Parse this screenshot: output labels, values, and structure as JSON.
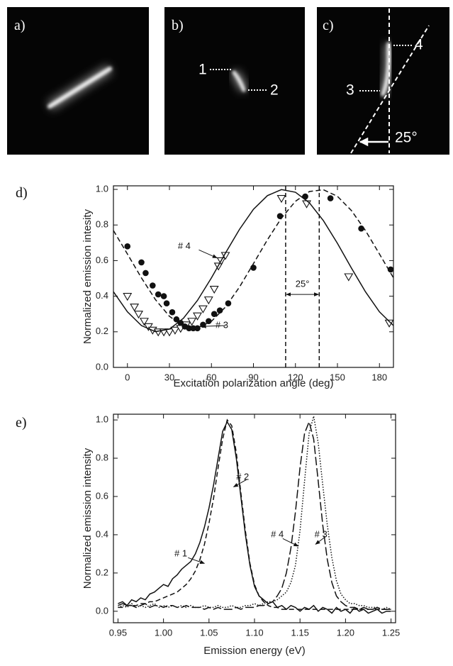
{
  "panels": {
    "a": {
      "label": "a)"
    },
    "b": {
      "label": "b)",
      "markers": [
        "1",
        "2"
      ]
    },
    "c": {
      "label": "c)",
      "markers": [
        "3",
        "4"
      ],
      "angle": "25°"
    }
  },
  "chart_data": [
    {
      "type": "line",
      "panel_label": "d)",
      "xlabel": "Excitation polarization angle (deg)",
      "ylabel": "Normalized emission intesity",
      "xlim": [
        -10,
        190
      ],
      "ylim": [
        0,
        1.02
      ],
      "xticks": [
        0,
        30,
        60,
        90,
        120,
        150,
        180
      ],
      "yticks": [
        {
          "value": 0,
          "label": "0.0"
        },
        {
          "value": 0.2,
          "label": "0.2"
        },
        {
          "value": 0.4,
          "label": "0.4"
        },
        {
          "value": 0.6,
          "label": "0.6"
        },
        {
          "value": 0.8,
          "label": "0.8"
        },
        {
          "value": 1,
          "label": "1.0"
        }
      ],
      "series": [
        {
          "type": "scatter",
          "marker": "triangle",
          "color": "#111",
          "x": [
            0,
            5,
            8,
            12,
            15,
            18,
            22,
            26,
            30,
            34,
            38,
            42,
            46,
            50,
            54,
            58,
            62,
            65,
            67,
            70,
            110,
            128,
            158,
            187
          ],
          "values": [
            0.4,
            0.34,
            0.3,
            0.26,
            0.23,
            0.21,
            0.2,
            0.2,
            0.2,
            0.21,
            0.22,
            0.24,
            0.26,
            0.29,
            0.33,
            0.38,
            0.44,
            0.57,
            0.6,
            0.63,
            0.95,
            0.92,
            0.51,
            0.25
          ]
        },
        {
          "type": "scatter",
          "marker": "circle",
          "color": "#111",
          "x": [
            0,
            10,
            13,
            18,
            22,
            26,
            28,
            32,
            35,
            38,
            41,
            44,
            47,
            50,
            54,
            58,
            62,
            66,
            72,
            90,
            109,
            127,
            145,
            167,
            188
          ],
          "values": [
            0.68,
            0.59,
            0.53,
            0.46,
            0.41,
            0.4,
            0.36,
            0.31,
            0.27,
            0.25,
            0.23,
            0.22,
            0.22,
            0.22,
            0.24,
            0.26,
            0.3,
            0.32,
            0.36,
            0.56,
            0.85,
            0.96,
            0.95,
            0.78,
            0.55
          ]
        },
        {
          "type": "line",
          "dash": "solid",
          "color": "#111",
          "x": [
            -10,
            0,
            10,
            20,
            30,
            40,
            50,
            60,
            70,
            80,
            90,
            100,
            110,
            120,
            130,
            140,
            150,
            160,
            170,
            180,
            190
          ],
          "values": [
            0.425,
            0.312,
            0.235,
            0.201,
            0.215,
            0.276,
            0.376,
            0.503,
            0.642,
            0.775,
            0.888,
            0.965,
            0.999,
            0.984,
            0.924,
            0.824,
            0.697,
            0.558,
            0.425,
            0.312,
            0.235
          ]
        },
        {
          "type": "line",
          "dash": "dashed",
          "color": "#111",
          "x": [
            -10,
            0,
            10,
            20,
            30,
            40,
            50,
            60,
            70,
            80,
            90,
            100,
            110,
            120,
            130,
            140,
            150,
            160,
            170,
            180,
            190
          ],
          "values": [
            0.769,
            0.637,
            0.503,
            0.381,
            0.287,
            0.232,
            0.222,
            0.259,
            0.339,
            0.451,
            0.583,
            0.717,
            0.839,
            0.933,
            0.988,
            0.998,
            0.961,
            0.881,
            0.769,
            0.637,
            0.503
          ]
        }
      ],
      "vlines": [
        113,
        137
      ],
      "span_label": "25°",
      "annotations": [
        "# 4",
        "# 3"
      ]
    },
    {
      "type": "line",
      "panel_label": "e)",
      "xlabel": "Emission energy (eV)",
      "ylabel": "Normalized emission intensity",
      "xlim": [
        0.945,
        1.255
      ],
      "ylim": [
        -0.06,
        1.03
      ],
      "xticks": [
        0.95,
        {
          "value": 1,
          "label": "1.00"
        },
        1.05,
        {
          "value": 1.1,
          "label": "1.10"
        },
        1.15,
        {
          "value": 1.2,
          "label": "1.20"
        },
        1.25
      ],
      "yticks": [
        {
          "value": 0,
          "label": "0.0"
        },
        {
          "value": 0.2,
          "label": "0.2"
        },
        {
          "value": 0.4,
          "label": "0.4"
        },
        {
          "value": 0.6,
          "label": "0.6"
        },
        {
          "value": 0.8,
          "label": "0.8"
        },
        {
          "value": 1,
          "label": "1.0"
        }
      ],
      "x": [
        0.95,
        0.955,
        0.96,
        0.965,
        0.97,
        0.975,
        0.98,
        0.985,
        0.99,
        0.995,
        1,
        1.005,
        1.01,
        1.015,
        1.02,
        1.025,
        1.03,
        1.035,
        1.04,
        1.045,
        1.05,
        1.055,
        1.06,
        1.065,
        1.07,
        1.075,
        1.08,
        1.085,
        1.09,
        1.095,
        1.1,
        1.105,
        1.11,
        1.115,
        1.12,
        1.125,
        1.13,
        1.135,
        1.14,
        1.145,
        1.15,
        1.155,
        1.16,
        1.165,
        1.17,
        1.175,
        1.18,
        1.185,
        1.19,
        1.195,
        1.2,
        1.205,
        1.21,
        1.215,
        1.22,
        1.225,
        1.23,
        1.235,
        1.24,
        1.245,
        1.25
      ],
      "series": [
        {
          "type": "line",
          "dash": "solid",
          "color": "#111",
          "values": [
            0.04,
            0.05,
            0.03,
            0.06,
            0.05,
            0.07,
            0.06,
            0.09,
            0.1,
            0.12,
            0.14,
            0.13,
            0.17,
            0.19,
            0.22,
            0.24,
            0.26,
            0.3,
            0.36,
            0.44,
            0.54,
            0.66,
            0.8,
            0.94,
            0.99,
            0.95,
            0.8,
            0.6,
            0.4,
            0.24,
            0.13,
            0.08,
            0.06,
            0.04,
            0.05,
            0.02,
            0.03,
            0.01,
            0.03,
            0.02,
            0,
            0.02,
            0.01,
            0.03,
            0,
            0.02,
            0.01,
            -0.01,
            0.02,
            0,
            0.01,
            -0.01,
            0.02,
            0,
            0.01,
            -0.01,
            0,
            0.01,
            -0.01,
            0,
            0
          ]
        },
        {
          "type": "line",
          "dash": "dashed",
          "color": "#111",
          "values": [
            0.02,
            0.02,
            0.03,
            0.03,
            0.03,
            0.04,
            0.04,
            0.05,
            0.05,
            0.06,
            0.07,
            0.08,
            0.09,
            0.1,
            0.12,
            0.14,
            0.17,
            0.21,
            0.27,
            0.35,
            0.46,
            0.59,
            0.75,
            0.9,
            1.0,
            0.97,
            0.83,
            0.62,
            0.42,
            0.25,
            0.14,
            0.08,
            0.05,
            0.03,
            0.02,
            0.02,
            0.01,
            0.01,
            0.01,
            0.01,
            0.01,
            0.01,
            0.01,
            0.01,
            0.01,
            0.01,
            0.01,
            0.01,
            0.01,
            0.01,
            0.01,
            0.01,
            0.01,
            0.01,
            0.01,
            0.01,
            0.01,
            0.01,
            0.01,
            0.01,
            0.01
          ]
        },
        {
          "type": "line",
          "dash": "longdash",
          "color": "#111",
          "values": [
            0.03,
            0.04,
            0.03,
            0.03,
            0.02,
            0.03,
            0.04,
            0.02,
            0.03,
            0.03,
            0.02,
            0.03,
            0.03,
            0.02,
            0.02,
            0.03,
            0.02,
            0.02,
            0.02,
            0.01,
            0.02,
            0.01,
            0.02,
            0.01,
            0.01,
            0.01,
            0.02,
            0.01,
            0.02,
            0.02,
            0.02,
            0.03,
            0.03,
            0.04,
            0.05,
            0.08,
            0.12,
            0.2,
            0.33,
            0.52,
            0.75,
            0.93,
            0.99,
            0.9,
            0.68,
            0.45,
            0.27,
            0.15,
            0.08,
            0.05,
            0.03,
            0.02,
            0.02,
            0.01,
            0.02,
            0.01,
            0.01,
            0.02,
            0.01,
            0.01,
            0.01
          ]
        },
        {
          "type": "line",
          "dash": "dotted",
          "color": "#111",
          "values": [
            0.02,
            0.03,
            0.02,
            0.04,
            0.02,
            0.03,
            0.02,
            0.03,
            0.04,
            0.02,
            0.03,
            0.02,
            0.03,
            0.02,
            0.03,
            0.02,
            0.03,
            0.02,
            0.02,
            0.03,
            0.02,
            0.02,
            0.03,
            0.02,
            0.02,
            0.03,
            0.02,
            0.02,
            0.03,
            0.03,
            0.04,
            0.03,
            0.04,
            0.05,
            0.05,
            0.06,
            0.08,
            0.1,
            0.15,
            0.24,
            0.42,
            0.68,
            0.93,
            1.02,
            0.88,
            0.66,
            0.45,
            0.28,
            0.16,
            0.09,
            0.06,
            0.04,
            0.04,
            0.03,
            0.03,
            0.02,
            0.02,
            0.02,
            0.01,
            0.02,
            0.01
          ]
        }
      ],
      "annotations": [
        "# 1",
        "# 2",
        "# 4",
        "# 3"
      ]
    }
  ]
}
